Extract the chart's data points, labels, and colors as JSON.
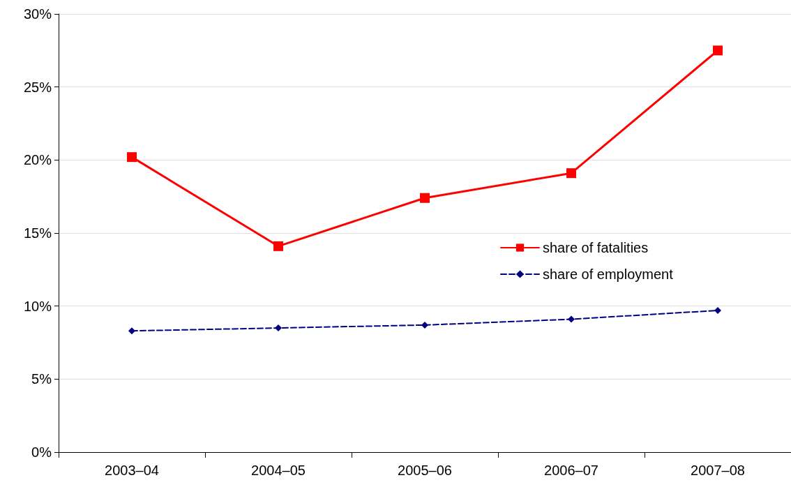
{
  "chart_data": {
    "type": "line",
    "categories": [
      "2003–04",
      "2004–05",
      "2005–06",
      "2006–07",
      "2007–08"
    ],
    "series": [
      {
        "name": "share of fatalities",
        "color": "#ff0000",
        "marker": "square",
        "line_style": "solid",
        "values": [
          20.2,
          14.1,
          17.4,
          19.1,
          27.5
        ]
      },
      {
        "name": "share of employment",
        "color": "#000080",
        "marker": "diamond",
        "line_style": "dashed",
        "values": [
          8.3,
          8.5,
          8.7,
          9.1,
          9.7
        ]
      }
    ],
    "ylim": [
      0,
      30
    ],
    "yticks": [
      {
        "value": 0,
        "label": "0%"
      },
      {
        "value": 5,
        "label": "5%"
      },
      {
        "value": 10,
        "label": "10%"
      },
      {
        "value": 15,
        "label": "15%"
      },
      {
        "value": 20,
        "label": "20%"
      },
      {
        "value": 25,
        "label": "25%"
      },
      {
        "value": 30,
        "label": "30%"
      }
    ],
    "grid": "y",
    "legend": "right"
  }
}
